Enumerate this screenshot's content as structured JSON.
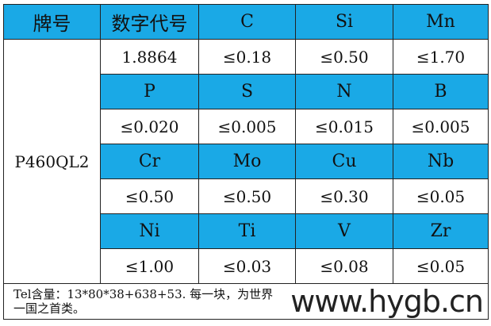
{
  "header": [
    "牌号",
    "数字代号",
    "C",
    "Si",
    "Mn"
  ],
  "grade": "P460QL2",
  "code": "1.8864",
  "row1": [
    "≤0.18",
    "≤0.50",
    "≤1.70"
  ],
  "rows": [
    {
      "elements": [
        "P",
        "S",
        "N",
        "B"
      ],
      "values": [
        "≤0.020",
        "≤0.005",
        "≤0.015",
        "≤0.005"
      ]
    },
    {
      "elements": [
        "Cr",
        "Mo",
        "Cu",
        "Nb"
      ],
      "values": [
        "≤0.50",
        "≤0.50",
        "≤0.30",
        "≤0.05"
      ]
    },
    {
      "elements": [
        "Ni",
        "Ti",
        "V",
        "Zr"
      ],
      "values": [
        "≤1.00",
        "≤0.03",
        "≤0.08",
        "≤0.05"
      ]
    }
  ],
  "footer": "Tel含量：13*80*38+638+53. 每一块，为世界一国之首类。",
  "watermark": "www.hygb.cn",
  "colors": {
    "header_bg": "#1aa9e6"
  }
}
